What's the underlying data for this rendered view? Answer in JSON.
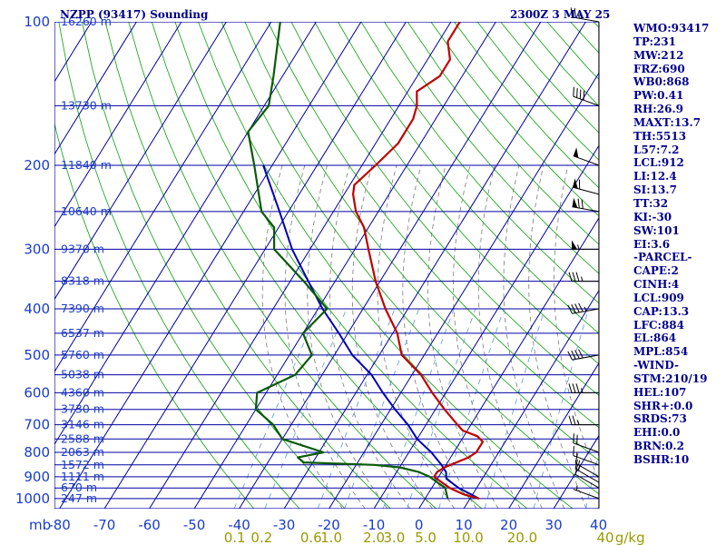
{
  "header": {
    "station": "NZPP (93417) Sounding",
    "datetime": "2300Z  3 MAY 25"
  },
  "indices": [
    "WMO:93417",
    "TP:231",
    "MW:212",
    "FRZ:690",
    "WB0:868",
    "PW:0.41",
    "RH:26.9",
    "MAXT:13.7",
    "TH:5513",
    "L57:7.2",
    "LCL:912",
    "LI:12.4",
    "SI:13.7",
    "TT:32",
    "KI:-30",
    "SW:101",
    "EI:3.6",
    "-PARCEL-",
    "CAPE:2",
    "CINH:4",
    "LCL:909",
    "CAP:13.3",
    "LFC:884",
    "EL:864",
    "MPL:854",
    "-WIND-",
    "STM:210/19",
    "HEL:107",
    "SHR+:0.0",
    "SRDS:73",
    "EHI:0.0",
    "BRN:0.2",
    "BSHR:10"
  ],
  "colors": {
    "grid": "#0000a0",
    "temperature": "#c00000",
    "dewpoint": "#0a5a0a",
    "parcel": "#0000b0",
    "dry_adiabat": "#22a822",
    "moist_adiabat": "#7a7a7a",
    "mixing_ratio": "#5b9bd5",
    "text": "#00008b",
    "mixing_label": "#9a9a00"
  },
  "chart_data": {
    "type": "skew-t",
    "title": "NZPP (93417) Sounding",
    "valid": "2300Z  3 MAY 25",
    "pressure_axis_label": "mb",
    "pressure_levels": [
      100,
      200,
      300,
      400,
      500,
      600,
      700,
      800,
      900,
      1000
    ],
    "height_labels": [
      {
        "p": 100,
        "text": "16260 m"
      },
      {
        "p": 150,
        "text": "13730 m"
      },
      {
        "p": 200,
        "text": "11840 m"
      },
      {
        "p": 250,
        "text": "10640 m"
      },
      {
        "p": 300,
        "text": "9370 m"
      },
      {
        "p": 350,
        "text": "8318 m"
      },
      {
        "p": 400,
        "text": "7390 m"
      },
      {
        "p": 450,
        "text": "6537 m"
      },
      {
        "p": 500,
        "text": "5760 m"
      },
      {
        "p": 550,
        "text": "5038 m"
      },
      {
        "p": 600,
        "text": "4360 m"
      },
      {
        "p": 650,
        "text": "3730 m"
      },
      {
        "p": 700,
        "text": "3146 m"
      },
      {
        "p": 750,
        "text": "2588 m"
      },
      {
        "p": 800,
        "text": "2063 m"
      },
      {
        "p": 850,
        "text": "1572 m"
      },
      {
        "p": 900,
        "text": "1111 m"
      },
      {
        "p": 950,
        "text": "670 m"
      },
      {
        "p": 1000,
        "text": "247 m"
      }
    ],
    "temperature_ticks": [
      -80,
      -70,
      -60,
      -50,
      -40,
      -30,
      -20,
      -10,
      0,
      10,
      20,
      30,
      40
    ],
    "mixing_ratio_labels": [
      {
        "t": -41,
        "text": "0.1"
      },
      {
        "t": -35,
        "text": "0.2"
      },
      {
        "t": -24,
        "text": "0.6"
      },
      {
        "t": -19.5,
        "text": "1.0"
      },
      {
        "t": -10,
        "text": "2.0"
      },
      {
        "t": -5.5,
        "text": "3.0"
      },
      {
        "t": 1.5,
        "text": "5.0"
      },
      {
        "t": 11,
        "text": "10.0"
      },
      {
        "t": 23,
        "text": "20.0"
      },
      {
        "t": 41.5,
        "text": "40"
      },
      {
        "t": 47,
        "text": "g/kg"
      }
    ],
    "temperature": [
      [
        1000,
        12
      ],
      [
        980,
        8
      ],
      [
        950,
        4
      ],
      [
        920,
        1
      ],
      [
        900,
        -1
      ],
      [
        880,
        -1
      ],
      [
        860,
        0
      ],
      [
        850,
        1
      ],
      [
        820,
        4
      ],
      [
        800,
        5
      ],
      [
        780,
        5
      ],
      [
        760,
        5
      ],
      [
        740,
        3
      ],
      [
        720,
        -1
      ],
      [
        700,
        -3
      ],
      [
        650,
        -8
      ],
      [
        600,
        -13
      ],
      [
        550,
        -18
      ],
      [
        500,
        -25
      ],
      [
        450,
        -29
      ],
      [
        400,
        -35
      ],
      [
        350,
        -41
      ],
      [
        300,
        -47
      ],
      [
        270,
        -51
      ],
      [
        250,
        -55
      ],
      [
        230,
        -58
      ],
      [
        220,
        -59
      ],
      [
        200,
        -57
      ],
      [
        180,
        -55
      ],
      [
        160,
        -55
      ],
      [
        150,
        -56
      ],
      [
        140,
        -58
      ],
      [
        130,
        -55
      ],
      [
        120,
        -55
      ],
      [
        110,
        -58
      ],
      [
        100,
        -58
      ]
    ],
    "dewpoint": [
      [
        1000,
        5
      ],
      [
        950,
        3
      ],
      [
        920,
        0
      ],
      [
        900,
        -2
      ],
      [
        880,
        -5
      ],
      [
        860,
        -10
      ],
      [
        850,
        -16
      ],
      [
        840,
        -32
      ],
      [
        820,
        -34
      ],
      [
        800,
        -29
      ],
      [
        750,
        -40
      ],
      [
        700,
        -44
      ],
      [
        650,
        -50
      ],
      [
        600,
        -52
      ],
      [
        550,
        -46
      ],
      [
        500,
        -45
      ],
      [
        450,
        -50
      ],
      [
        400,
        -48
      ],
      [
        350,
        -57
      ],
      [
        300,
        -68
      ],
      [
        270,
        -71
      ],
      [
        250,
        -76
      ],
      [
        200,
        -84
      ],
      [
        170,
        -90
      ],
      [
        150,
        -89
      ],
      [
        130,
        -92
      ],
      [
        100,
        -98
      ]
    ],
    "parcel": [
      [
        1000,
        12
      ],
      [
        950,
        6
      ],
      [
        909,
        2
      ],
      [
        880,
        1
      ],
      [
        850,
        -1
      ],
      [
        800,
        -5
      ],
      [
        750,
        -10
      ],
      [
        700,
        -14
      ],
      [
        650,
        -19
      ],
      [
        600,
        -24
      ],
      [
        550,
        -29
      ],
      [
        500,
        -36
      ],
      [
        450,
        -42
      ],
      [
        400,
        -49
      ],
      [
        350,
        -56
      ],
      [
        300,
        -64
      ],
      [
        250,
        -72
      ],
      [
        200,
        -82
      ]
    ],
    "wind_barbs": [
      {
        "p": 1000,
        "dir": 290,
        "kt": 5
      },
      {
        "p": 950,
        "dir": 300,
        "kt": 10
      },
      {
        "p": 925,
        "dir": 300,
        "kt": 15
      },
      {
        "p": 900,
        "dir": 300,
        "kt": 15
      },
      {
        "p": 850,
        "dir": 290,
        "kt": 15
      },
      {
        "p": 800,
        "dir": 290,
        "kt": 20
      },
      {
        "p": 700,
        "dir": 270,
        "kt": 25
      },
      {
        "p": 600,
        "dir": 270,
        "kt": 35
      },
      {
        "p": 500,
        "dir": 260,
        "kt": 40
      },
      {
        "p": 400,
        "dir": 260,
        "kt": 45
      },
      {
        "p": 350,
        "dir": 270,
        "kt": 35
      },
      {
        "p": 300,
        "dir": 270,
        "kt": 55
      },
      {
        "p": 250,
        "dir": 280,
        "kt": 70
      },
      {
        "p": 230,
        "dir": 285,
        "kt": 60
      },
      {
        "p": 200,
        "dir": 290,
        "kt": 50
      },
      {
        "p": 150,
        "dir": 290,
        "kt": 40
      },
      {
        "p": 100,
        "dir": 280,
        "kt": 25
      }
    ]
  }
}
